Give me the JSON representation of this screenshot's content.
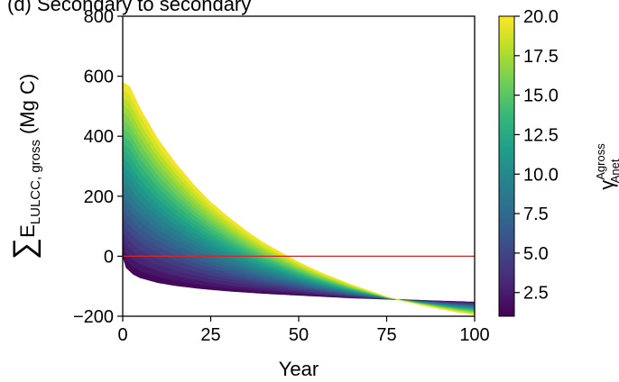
{
  "chart_data": {
    "type": "area",
    "title": "(d) Secondary to secondary",
    "xlabel": "Year",
    "ylabel": {
      "sum_symbol": "∑",
      "main": "E",
      "subscript": "LULCC, gross",
      "unit": "(Mg C)"
    },
    "xlim": [
      0,
      100
    ],
    "ylim": [
      -200,
      800
    ],
    "x_ticks": [
      "0",
      "25",
      "50",
      "75",
      "100"
    ],
    "y_ticks": [
      "−200",
      "0",
      "200",
      "400",
      "600",
      "800"
    ],
    "reference_line": {
      "y": 0,
      "color": "#d62728"
    },
    "series": {
      "min_gamma": 1,
      "max_gamma": 20,
      "upper_edge": [
        [
          0,
          580
        ],
        [
          2,
          565
        ],
        [
          5,
          490
        ],
        [
          10,
          390
        ],
        [
          15,
          310
        ],
        [
          20,
          240
        ],
        [
          25,
          180
        ],
        [
          30,
          130
        ],
        [
          35,
          85
        ],
        [
          40,
          45
        ],
        [
          45,
          12
        ],
        [
          50,
          -20
        ],
        [
          55,
          -48
        ],
        [
          60,
          -72
        ],
        [
          65,
          -95
        ],
        [
          70,
          -115
        ],
        [
          75,
          -135
        ],
        [
          80,
          -150
        ],
        [
          85,
          -163
        ],
        [
          90,
          -175
        ],
        [
          95,
          -186
        ],
        [
          100,
          -195
        ]
      ],
      "lower_edge": [
        [
          0,
          0
        ],
        [
          1,
          -38
        ],
        [
          3,
          -60
        ],
        [
          5,
          -72
        ],
        [
          10,
          -88
        ],
        [
          15,
          -98
        ],
        [
          20,
          -105
        ],
        [
          25,
          -111
        ],
        [
          30,
          -116
        ],
        [
          35,
          -120
        ],
        [
          40,
          -124
        ],
        [
          45,
          -127
        ],
        [
          50,
          -130
        ],
        [
          55,
          -133
        ],
        [
          60,
          -136
        ],
        [
          65,
          -139
        ],
        [
          70,
          -141
        ],
        [
          75,
          -143
        ],
        [
          80,
          -145
        ],
        [
          85,
          -147
        ],
        [
          90,
          -149
        ],
        [
          95,
          -151
        ],
        [
          100,
          -153
        ]
      ]
    },
    "colorbar": {
      "label": {
        "main": "γ",
        "superscript": "Agross",
        "subscript": "Anet"
      },
      "range": [
        1,
        20
      ],
      "ticks": [
        "2.5",
        "5.0",
        "7.5",
        "10.0",
        "12.5",
        "15.0",
        "17.5",
        "20.0"
      ],
      "colormap": "viridis",
      "colormap_stops": [
        "#440154",
        "#482878",
        "#3e4989",
        "#31688e",
        "#26828e",
        "#1f9e89",
        "#35b779",
        "#6ece58",
        "#b5de2b",
        "#fde725"
      ]
    }
  }
}
